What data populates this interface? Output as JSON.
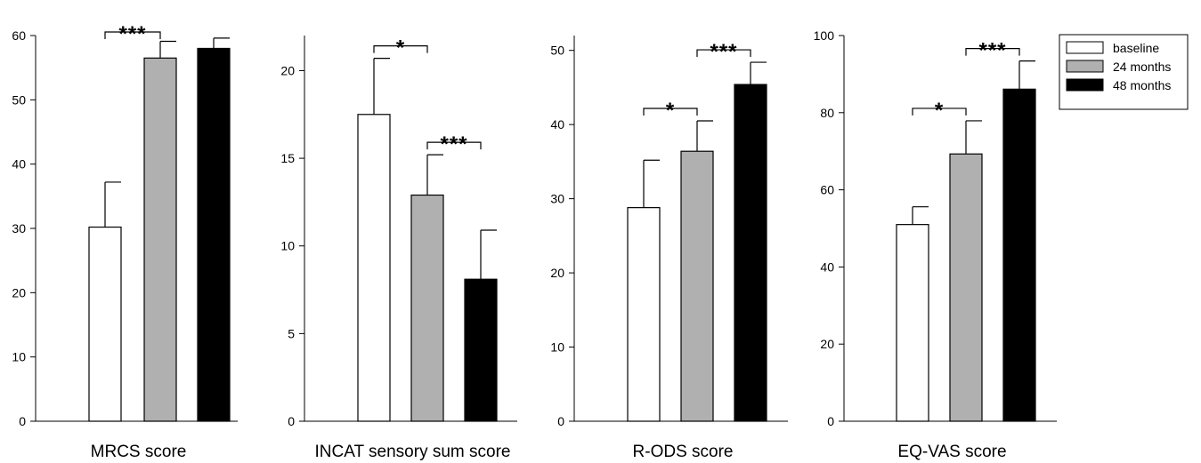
{
  "chart_data": [
    {
      "type": "bar",
      "xlabel": "MRCS score",
      "categories": [
        "baseline",
        "24 months",
        "48 months"
      ],
      "values": [
        30.2,
        56.5,
        58.0
      ],
      "errors": [
        7.0,
        2.6,
        1.6
      ],
      "ylim": [
        0,
        60
      ],
      "yticks": [
        "0",
        "10",
        "20",
        "30",
        "40",
        "50",
        "60"
      ],
      "significance": [
        {
          "from": 0,
          "to": 1,
          "label": "***"
        }
      ]
    },
    {
      "type": "bar",
      "xlabel": "INCAT sensory sum score",
      "categories": [
        "baseline",
        "24 months",
        "48 months"
      ],
      "values": [
        17.5,
        12.9,
        8.1
      ],
      "errors": [
        3.2,
        2.3,
        2.8
      ],
      "ylim": [
        0,
        22
      ],
      "yticks": [
        "0",
        "5",
        "10",
        "15",
        "20"
      ],
      "significance": [
        {
          "from": 0,
          "to": 1,
          "label": "*"
        },
        {
          "from": 1,
          "to": 2,
          "label": "***"
        }
      ]
    },
    {
      "type": "bar",
      "xlabel": "R-ODS score",
      "categories": [
        "baseline",
        "24 months",
        "48 months"
      ],
      "values": [
        28.8,
        36.4,
        45.4
      ],
      "errors": [
        6.4,
        4.1,
        3.0
      ],
      "ylim": [
        0,
        52
      ],
      "yticks": [
        "0",
        "10",
        "20",
        "30",
        "40",
        "50"
      ],
      "significance": [
        {
          "from": 0,
          "to": 1,
          "label": "*"
        },
        {
          "from": 1,
          "to": 2,
          "label": "***"
        }
      ]
    },
    {
      "type": "bar",
      "xlabel": "EQ-VAS score",
      "categories": [
        "baseline",
        "24 months",
        "48 months"
      ],
      "values": [
        51.0,
        69.3,
        86.1
      ],
      "errors": [
        4.6,
        8.6,
        7.3
      ],
      "ylim": [
        0,
        100
      ],
      "yticks": [
        "0",
        "20",
        "40",
        "60",
        "80",
        "100"
      ],
      "significance": [
        {
          "from": 0,
          "to": 1,
          "label": "*"
        },
        {
          "from": 1,
          "to": 2,
          "label": "***"
        }
      ]
    }
  ],
  "legend": {
    "placement": "top-right",
    "items": [
      {
        "label": "baseline",
        "color": "#ffffff"
      },
      {
        "label": "24 months",
        "color": "#b0b0b0"
      },
      {
        "label": "48 months",
        "color": "#000000"
      }
    ]
  }
}
